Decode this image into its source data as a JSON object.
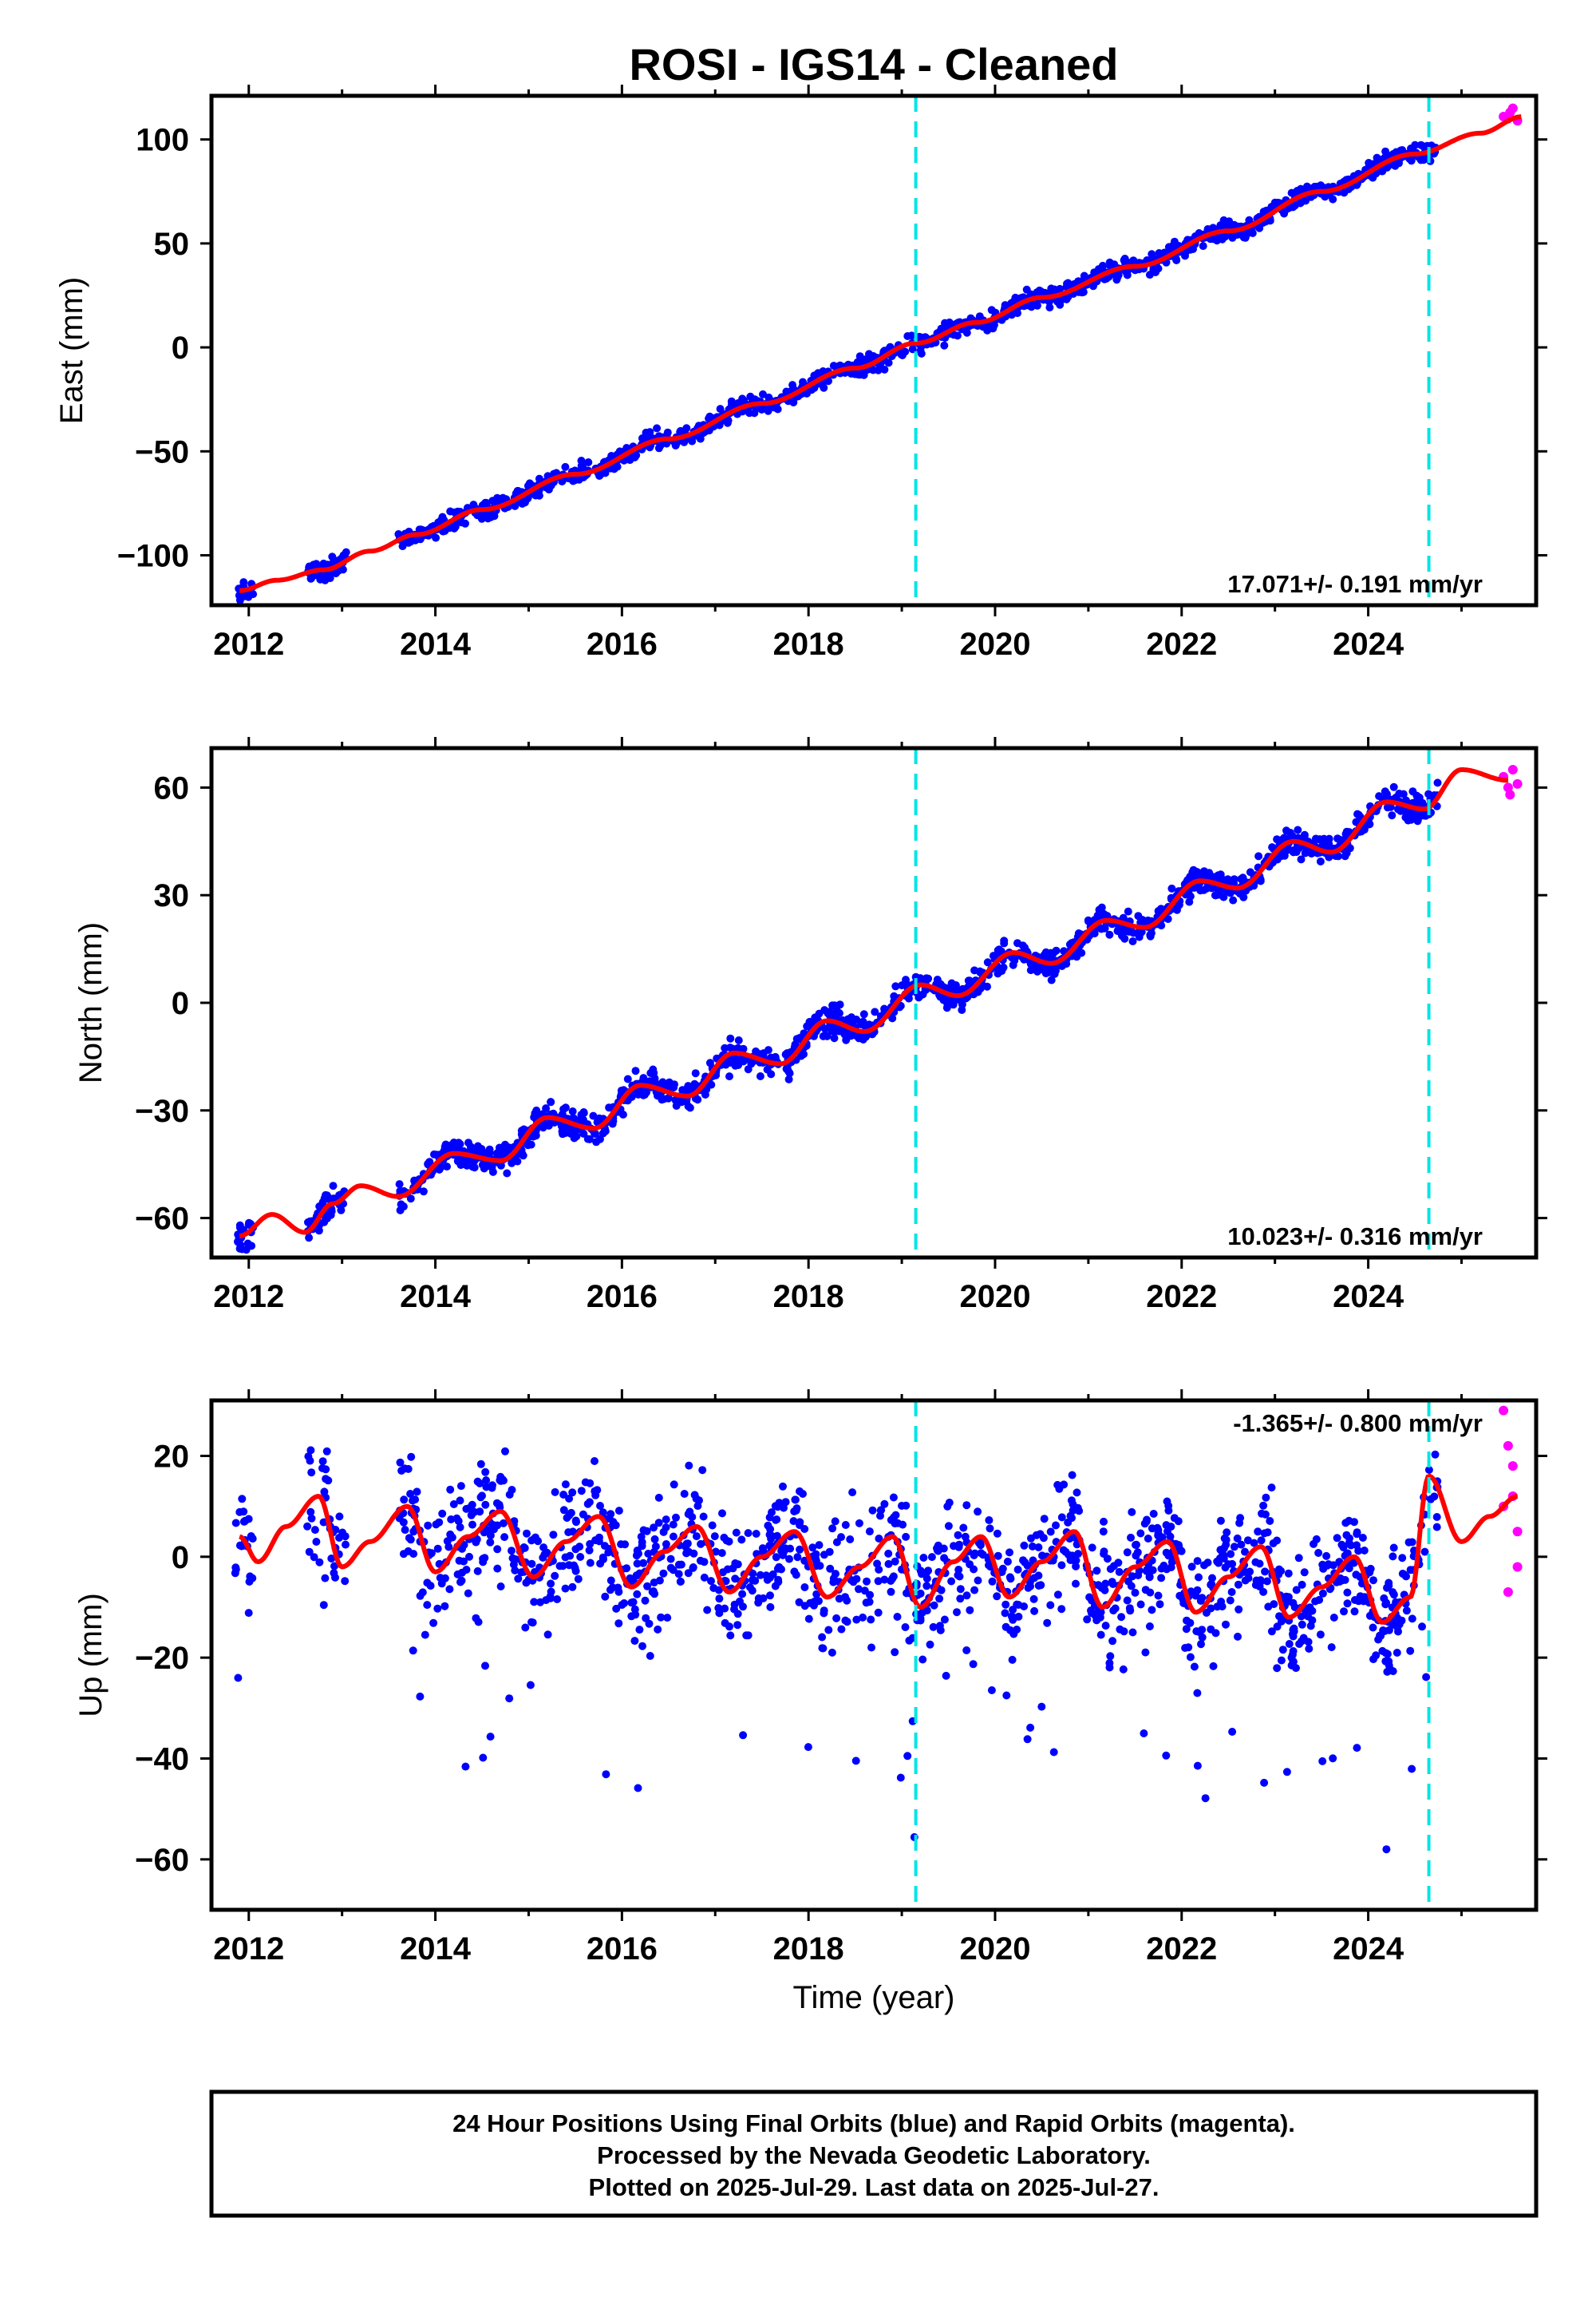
{
  "chart_data": {
    "type": "scatter",
    "title": "ROSI  - IGS14 - Cleaned",
    "xlabel": "Time (year)",
    "x_ticks": [
      "2012",
      "2014",
      "2016",
      "2018",
      "2020",
      "2022",
      "2024"
    ],
    "xlim": [
      2011.6,
      2025.8
    ],
    "event_lines_year": [
      2019.15,
      2024.65
    ],
    "colors": {
      "final": "#0000ff",
      "rapid": "#ff00ff",
      "model": "#ff0000",
      "event": "#00e5e5"
    },
    "panels": [
      {
        "name": "east",
        "ylabel": "East (mm)",
        "ylim": [
          -124,
          121
        ],
        "y_ticks": [
          "100",
          "50",
          "0",
          "−50",
          "−100"
        ],
        "y_tick_values": [
          100,
          50,
          0,
          -50,
          -100
        ],
        "rate_label": "17.071+/- 0.191 mm/yr",
        "rate": 17.071,
        "model_points": [
          [
            2011.9,
            -117
          ],
          [
            2012.3,
            -112
          ],
          [
            2012.8,
            -107
          ],
          [
            2013.3,
            -98
          ],
          [
            2013.8,
            -90
          ],
          [
            2014.5,
            -78
          ],
          [
            2015.5,
            -61
          ],
          [
            2016.5,
            -44
          ],
          [
            2017.5,
            -27
          ],
          [
            2018.5,
            -10
          ],
          [
            2019.15,
            2
          ],
          [
            2019.8,
            12
          ],
          [
            2020.5,
            24
          ],
          [
            2021.5,
            39
          ],
          [
            2022.5,
            56
          ],
          [
            2023.5,
            75
          ],
          [
            2024.5,
            93
          ],
          [
            2025.2,
            103
          ],
          [
            2025.65,
            111
          ]
        ],
        "rapid_points": [
          [
            2025.45,
            111
          ],
          [
            2025.52,
            113
          ],
          [
            2025.6,
            109
          ],
          [
            2025.55,
            115
          ],
          [
            2025.5,
            110
          ]
        ]
      },
      {
        "name": "north",
        "ylabel": "North (mm)",
        "ylim": [
          -71,
          71
        ],
        "y_ticks": [
          "60",
          "30",
          "0",
          "−30",
          "−60"
        ],
        "y_tick_values": [
          60,
          30,
          0,
          -30,
          -60
        ],
        "rate_label": "10.023+/- 0.316 mm/yr",
        "rate": 10.023,
        "model_points": [
          [
            2011.9,
            -65
          ],
          [
            2012.25,
            -59
          ],
          [
            2012.6,
            -64
          ],
          [
            2012.9,
            -56
          ],
          [
            2013.2,
            -51
          ],
          [
            2013.6,
            -54
          ],
          [
            2014.2,
            -42
          ],
          [
            2014.7,
            -44
          ],
          [
            2015.2,
            -32
          ],
          [
            2015.7,
            -35
          ],
          [
            2016.2,
            -23
          ],
          [
            2016.7,
            -26
          ],
          [
            2017.2,
            -14
          ],
          [
            2017.7,
            -17
          ],
          [
            2018.2,
            -5
          ],
          [
            2018.6,
            -8
          ],
          [
            2019.2,
            5
          ],
          [
            2019.6,
            2
          ],
          [
            2020.2,
            14
          ],
          [
            2020.6,
            11
          ],
          [
            2021.2,
            23
          ],
          [
            2021.6,
            21
          ],
          [
            2022.2,
            34
          ],
          [
            2022.6,
            32
          ],
          [
            2023.2,
            45
          ],
          [
            2023.6,
            42
          ],
          [
            2024.2,
            56
          ],
          [
            2024.6,
            54
          ],
          [
            2025.0,
            65
          ],
          [
            2025.5,
            62
          ]
        ],
        "rapid_points": [
          [
            2025.45,
            63
          ],
          [
            2025.5,
            60
          ],
          [
            2025.55,
            65
          ],
          [
            2025.6,
            61
          ],
          [
            2025.52,
            58
          ]
        ]
      },
      {
        "name": "up",
        "ylabel": "Up (mm)",
        "ylim": [
          -70,
          31
        ],
        "y_ticks": [
          "20",
          "0",
          "−20",
          "−40",
          "−60"
        ],
        "y_tick_values": [
          20,
          0,
          -20,
          -40,
          -60
        ],
        "rate_label": "-1.365+/- 0.800 mm/yr",
        "rate": -1.365,
        "model_points": [
          [
            2011.9,
            4
          ],
          [
            2012.1,
            -1
          ],
          [
            2012.4,
            6
          ],
          [
            2012.75,
            12
          ],
          [
            2013.0,
            -2
          ],
          [
            2013.3,
            3
          ],
          [
            2013.7,
            10
          ],
          [
            2014.0,
            -3
          ],
          [
            2014.35,
            4
          ],
          [
            2014.7,
            9
          ],
          [
            2015.05,
            -4
          ],
          [
            2015.4,
            3
          ],
          [
            2015.75,
            8
          ],
          [
            2016.1,
            -6
          ],
          [
            2016.45,
            1
          ],
          [
            2016.8,
            6
          ],
          [
            2017.15,
            -7
          ],
          [
            2017.5,
            0
          ],
          [
            2017.85,
            5
          ],
          [
            2018.2,
            -8
          ],
          [
            2018.55,
            -2
          ],
          [
            2018.9,
            4
          ],
          [
            2019.2,
            -10
          ],
          [
            2019.55,
            -1
          ],
          [
            2019.85,
            4
          ],
          [
            2020.15,
            -8
          ],
          [
            2020.5,
            -1
          ],
          [
            2020.85,
            5
          ],
          [
            2021.15,
            -10
          ],
          [
            2021.5,
            -2
          ],
          [
            2021.85,
            3
          ],
          [
            2022.15,
            -11
          ],
          [
            2022.5,
            -4
          ],
          [
            2022.85,
            2
          ],
          [
            2023.15,
            -12
          ],
          [
            2023.5,
            -6
          ],
          [
            2023.85,
            0
          ],
          [
            2024.15,
            -13
          ],
          [
            2024.45,
            -8
          ],
          [
            2024.65,
            16
          ],
          [
            2025.0,
            3
          ],
          [
            2025.3,
            8
          ],
          [
            2025.6,
            12
          ]
        ],
        "rapid_points": [
          [
            2025.45,
            29
          ],
          [
            2025.5,
            22
          ],
          [
            2025.55,
            12
          ],
          [
            2025.6,
            5
          ],
          [
            2025.5,
            -7
          ],
          [
            2025.55,
            18
          ],
          [
            2025.45,
            10
          ],
          [
            2025.6,
            -2
          ]
        ]
      }
    ]
  },
  "footer": {
    "line1": "24 Hour Positions Using Final Orbits (blue) and Rapid Orbits (magenta).",
    "line2": "Processed by the Nevada Geodetic Laboratory.",
    "line3": "Plotted on 2025-Jul-29. Last data on 2025-Jul-27."
  }
}
